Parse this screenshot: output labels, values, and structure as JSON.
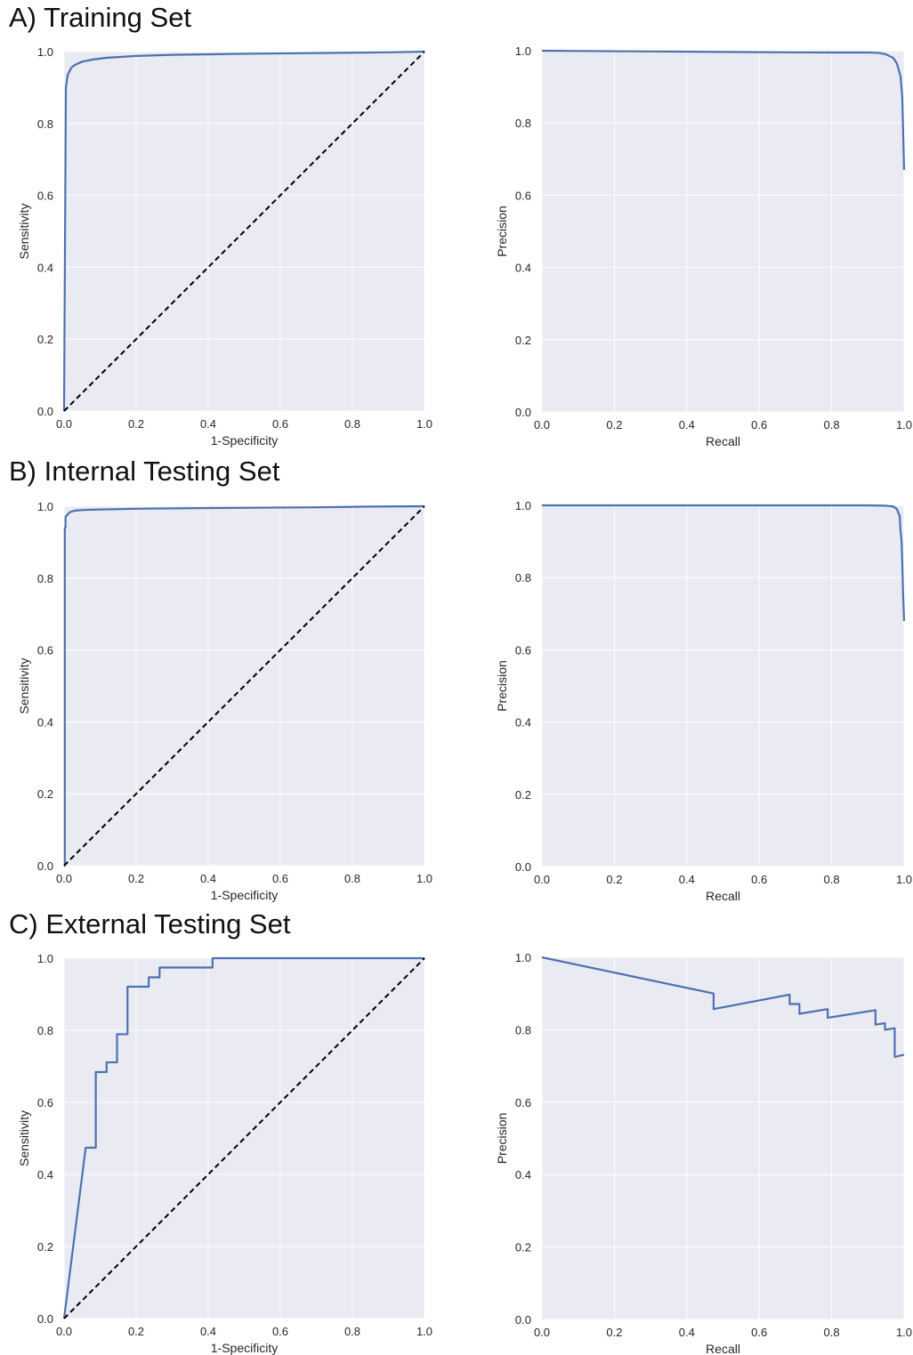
{
  "sections": [
    {
      "title": "A) Training Set"
    },
    {
      "title": "B) Internal Testing Set"
    },
    {
      "title": "C) External Testing Set"
    }
  ],
  "colors": {
    "panel_bg": "#eaeaf2",
    "grid": "#ffffff",
    "curve": "#4c72b0",
    "diagonal": "#000000"
  },
  "chart_data": [
    {
      "id": "A-roc",
      "type": "line",
      "title": "",
      "xlabel": "1-Specificity",
      "ylabel": "Sensitivity",
      "xlim": [
        0,
        1
      ],
      "ylim": [
        0,
        1
      ],
      "xticks": [
        "0.0",
        "0.2",
        "0.4",
        "0.6",
        "0.8",
        "1.0"
      ],
      "yticks": [
        "0.0",
        "0.2",
        "0.4",
        "0.6",
        "0.8",
        "1.0"
      ],
      "grid": true,
      "legend": "none",
      "series": [
        {
          "style": "solid",
          "x": [
            0,
            0.005,
            0.01,
            0.02,
            0.03,
            0.05,
            0.08,
            0.12,
            0.2,
            0.3,
            0.5,
            0.7,
            0.9,
            1.0
          ],
          "y": [
            0,
            0.9,
            0.935,
            0.955,
            0.963,
            0.972,
            0.978,
            0.983,
            0.988,
            0.991,
            0.994,
            0.996,
            0.998,
            1.0
          ]
        },
        {
          "style": "dashed",
          "x": [
            0,
            1
          ],
          "y": [
            0,
            1
          ]
        }
      ]
    },
    {
      "id": "A-pr",
      "type": "line",
      "title": "",
      "xlabel": "Recall",
      "ylabel": "Precision",
      "xlim": [
        0,
        1
      ],
      "ylim": [
        0,
        1
      ],
      "xticks": [
        "0.0",
        "0.2",
        "0.4",
        "0.6",
        "0.8",
        "1.0"
      ],
      "yticks": [
        "0.0",
        "0.2",
        "0.4",
        "0.6",
        "0.8",
        "1.0"
      ],
      "grid": true,
      "legend": "none",
      "series": [
        {
          "style": "solid",
          "x": [
            0,
            0.3,
            0.6,
            0.8,
            0.9,
            0.93,
            0.95,
            0.97,
            0.98,
            0.99,
            0.995,
            1.0
          ],
          "y": [
            1.0,
            0.998,
            0.996,
            0.995,
            0.995,
            0.994,
            0.99,
            0.98,
            0.965,
            0.93,
            0.87,
            0.67
          ]
        }
      ]
    },
    {
      "id": "B-roc",
      "type": "line",
      "title": "",
      "xlabel": "1-Specificity",
      "ylabel": "Sensitivity",
      "xlim": [
        0,
        1
      ],
      "ylim": [
        0,
        1
      ],
      "xticks": [
        "0.0",
        "0.2",
        "0.4",
        "0.6",
        "0.8",
        "1.0"
      ],
      "yticks": [
        "0.0",
        "0.2",
        "0.4",
        "0.6",
        "0.8",
        "1.0"
      ],
      "grid": true,
      "legend": "none",
      "series": [
        {
          "style": "solid",
          "x": [
            0,
            0.002,
            0.002,
            0.004,
            0.004,
            0.008,
            0.015,
            0.03,
            0.06,
            0.1,
            0.2,
            0.4,
            0.7,
            0.85,
            1.0
          ],
          "y": [
            0,
            0,
            0.94,
            0.94,
            0.97,
            0.975,
            0.983,
            0.988,
            0.99,
            0.991,
            0.993,
            0.995,
            0.997,
            0.999,
            1.0
          ]
        },
        {
          "style": "dashed",
          "x": [
            0,
            1
          ],
          "y": [
            0,
            1
          ]
        }
      ]
    },
    {
      "id": "B-pr",
      "type": "line",
      "title": "",
      "xlabel": "Recall",
      "ylabel": "Precision",
      "xlim": [
        0,
        1
      ],
      "ylim": [
        0,
        1
      ],
      "xticks": [
        "0.0",
        "0.2",
        "0.4",
        "0.6",
        "0.8",
        "1.0"
      ],
      "yticks": [
        "0.0",
        "0.2",
        "0.4",
        "0.6",
        "0.8",
        "1.0"
      ],
      "grid": true,
      "legend": "none",
      "series": [
        {
          "style": "solid",
          "x": [
            0,
            0.5,
            0.9,
            0.95,
            0.97,
            0.98,
            0.988,
            0.99,
            0.993,
            0.995,
            0.997,
            1.0
          ],
          "y": [
            1.0,
            1.0,
            1.0,
            0.999,
            0.997,
            0.99,
            0.97,
            0.93,
            0.9,
            0.84,
            0.76,
            0.68
          ]
        }
      ]
    },
    {
      "id": "C-roc",
      "type": "line",
      "title": "",
      "xlabel": "1-Specificity",
      "ylabel": "Sensitivity",
      "xlim": [
        0,
        1
      ],
      "ylim": [
        0,
        1
      ],
      "xticks": [
        "0.0",
        "0.2",
        "0.4",
        "0.6",
        "0.8",
        "1.0"
      ],
      "yticks": [
        "0.0",
        "0.2",
        "0.4",
        "0.6",
        "0.8",
        "1.0"
      ],
      "grid": true,
      "legend": "none",
      "series": [
        {
          "style": "solid",
          "x": [
            0,
            0.06,
            0.088,
            0.088,
            0.118,
            0.118,
            0.147,
            0.147,
            0.176,
            0.176,
            0.235,
            0.235,
            0.265,
            0.265,
            0.412,
            0.412,
            1.0
          ],
          "y": [
            0,
            0.474,
            0.474,
            0.684,
            0.684,
            0.711,
            0.711,
            0.789,
            0.789,
            0.921,
            0.921,
            0.947,
            0.947,
            0.974,
            0.974,
            1.0,
            1.0
          ]
        },
        {
          "style": "dashed",
          "x": [
            0,
            1
          ],
          "y": [
            0,
            1
          ]
        }
      ]
    },
    {
      "id": "C-pr",
      "type": "line",
      "title": "",
      "xlabel": "Recall",
      "ylabel": "Precision",
      "xlim": [
        0,
        1
      ],
      "ylim": [
        0,
        1
      ],
      "xticks": [
        "0.0",
        "0.2",
        "0.4",
        "0.6",
        "0.8",
        "1.0"
      ],
      "yticks": [
        "0.0",
        "0.2",
        "0.4",
        "0.6",
        "0.8",
        "1.0"
      ],
      "grid": true,
      "legend": "none",
      "series": [
        {
          "style": "solid",
          "x": [
            0,
            0.474,
            0.474,
            0.684,
            0.684,
            0.711,
            0.711,
            0.789,
            0.789,
            0.921,
            0.921,
            0.947,
            0.947,
            0.974,
            0.974,
            1.0
          ],
          "y": [
            1.0,
            0.9,
            0.857,
            0.897,
            0.871,
            0.871,
            0.844,
            0.857,
            0.833,
            0.854,
            0.814,
            0.818,
            0.8,
            0.804,
            0.725,
            0.731
          ]
        }
      ]
    }
  ]
}
